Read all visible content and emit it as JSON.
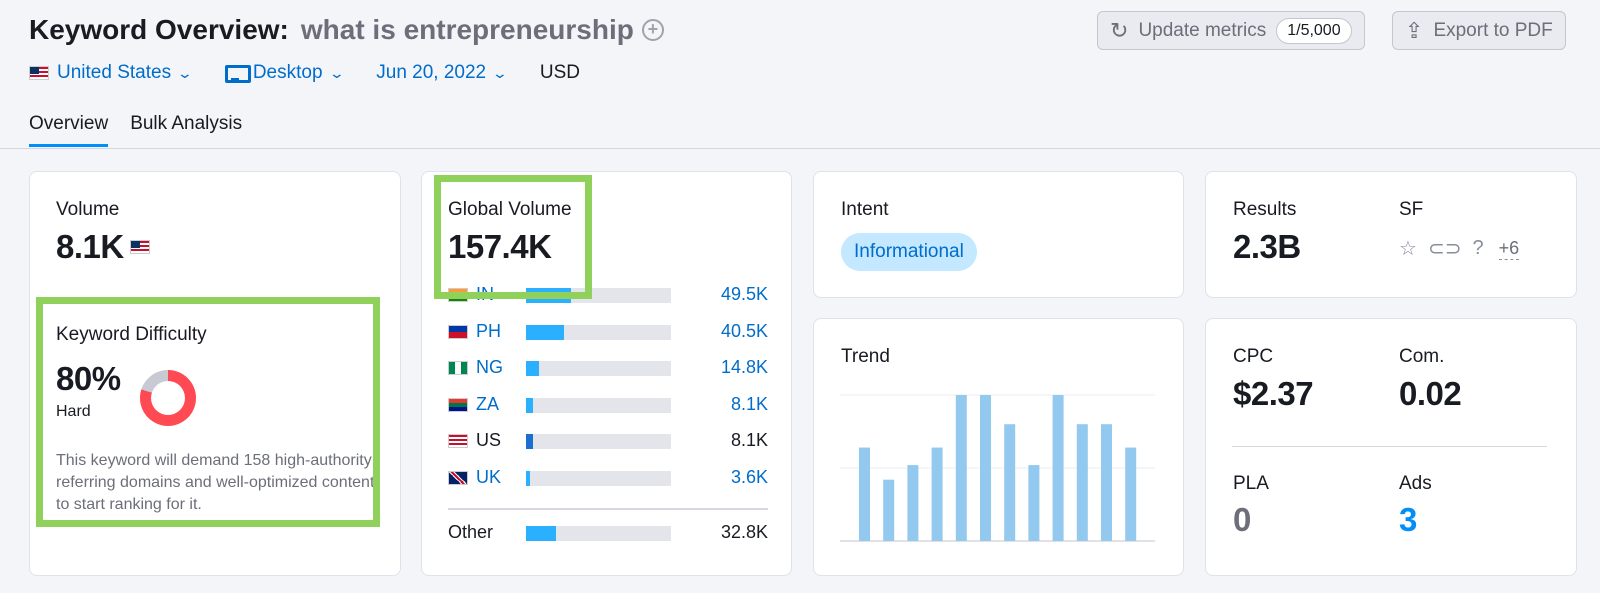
{
  "header": {
    "title": "Keyword Overview:",
    "keyword": "what is entrepreneurship",
    "add_icon": "plus-circle-icon",
    "update_button": {
      "label": "Update metrics",
      "counter": "1/5,000",
      "icon": "refresh-icon"
    },
    "export_button": {
      "label": "Export to PDF",
      "icon": "upload-icon"
    }
  },
  "filters": {
    "country": "United States",
    "device": "Desktop",
    "date": "Jun 20, 2022",
    "currency": "USD"
  },
  "tabs": [
    {
      "label": "Overview",
      "active": true
    },
    {
      "label": "Bulk Analysis",
      "active": false
    }
  ],
  "volume": {
    "label": "Volume",
    "value": "8.1K",
    "difficulty": {
      "label": "Keyword Difficulty",
      "value": "80%",
      "percent": 80,
      "level": "Hard",
      "description": "This keyword will demand 158 high-authority referring domains and well-optimized content to start ranking for it."
    }
  },
  "global_volume": {
    "label": "Global Volume",
    "value": "157.4K",
    "rows": [
      {
        "code": "IN",
        "value": "49.5K",
        "share": 0.31
      },
      {
        "code": "PH",
        "value": "40.5K",
        "share": 0.26
      },
      {
        "code": "NG",
        "value": "14.8K",
        "share": 0.09
      },
      {
        "code": "ZA",
        "value": "8.1K",
        "share": 0.05
      },
      {
        "code": "US",
        "value": "8.1K",
        "share": 0.05
      },
      {
        "code": "UK",
        "value": "3.6K",
        "share": 0.03
      }
    ],
    "other": {
      "label": "Other",
      "value": "32.8K",
      "share": 0.21
    }
  },
  "intent": {
    "label": "Intent",
    "value": "Informational"
  },
  "trend": {
    "label": "Trend",
    "chart_data": {
      "type": "bar",
      "values": [
        0.64,
        0.42,
        0.52,
        0.64,
        1.0,
        1.0,
        0.8,
        0.52,
        1.0,
        0.8,
        0.8,
        0.64
      ],
      "ylim": [
        0,
        1
      ]
    }
  },
  "results": {
    "label": "Results",
    "value": "2.3B",
    "sf_label": "SF",
    "sf_icons": [
      "star-icon",
      "link-icon",
      "question-icon"
    ],
    "sf_more": "+6"
  },
  "cpc": {
    "label": "CPC",
    "value": "$2.37"
  },
  "competition": {
    "label": "Com.",
    "value": "0.02"
  },
  "pla": {
    "label": "PLA",
    "value": "0"
  },
  "ads": {
    "label": "Ads",
    "value": "3"
  },
  "colors": {
    "accent": "#006dca",
    "highlight": "#8fd15b",
    "difficulty": "#ff4953",
    "trend_bar": "#93c9ef"
  }
}
